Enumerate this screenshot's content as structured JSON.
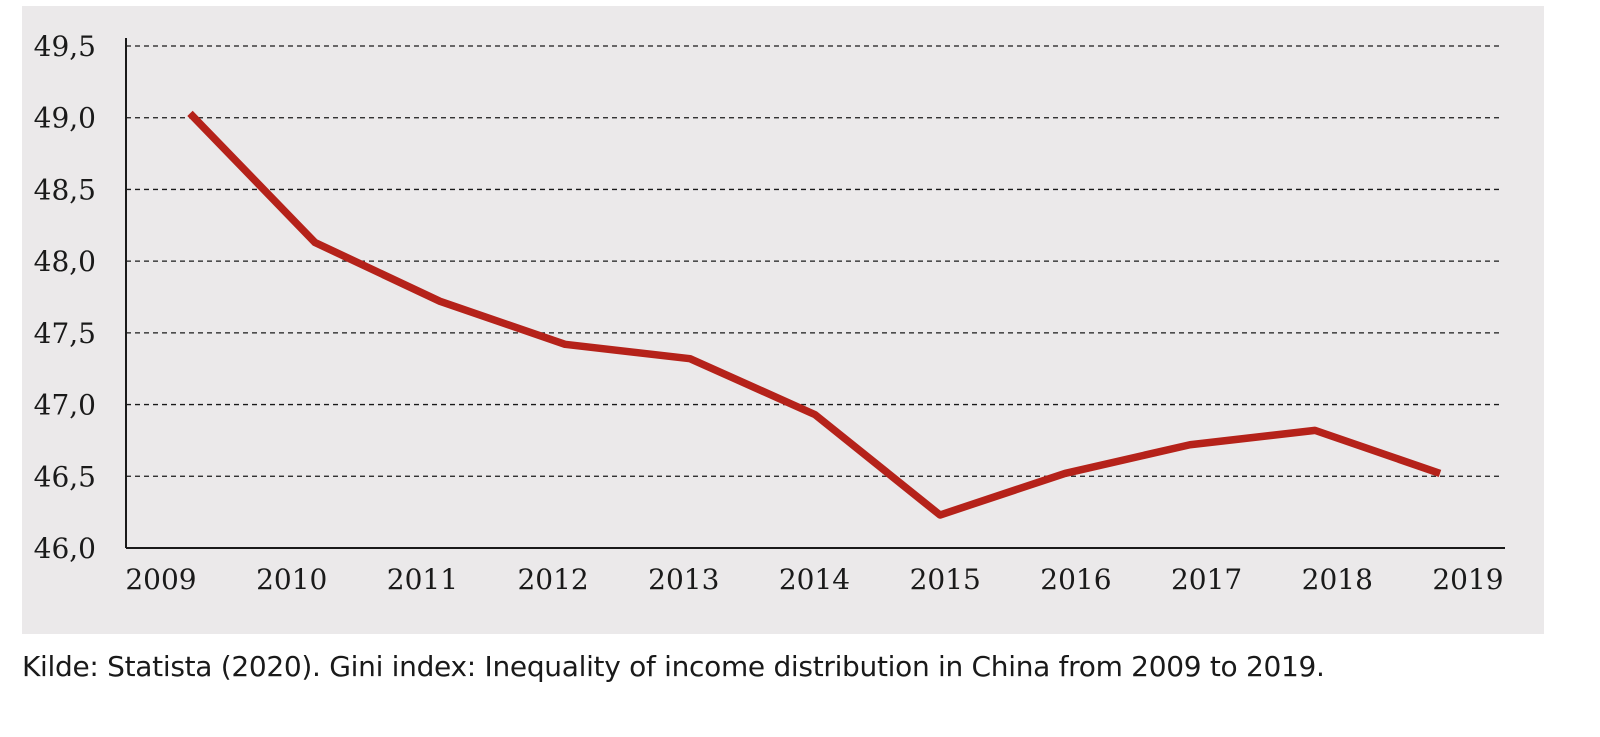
{
  "chart_data": {
    "type": "line",
    "x": [
      "2009",
      "2010",
      "2011",
      "2012",
      "2013",
      "2014",
      "2015",
      "2016",
      "2017",
      "2018",
      "2019"
    ],
    "series": [
      {
        "values": [
          49.03,
          48.13,
          47.72,
          47.42,
          47.32,
          46.93,
          46.23,
          46.52,
          46.72,
          46.82,
          46.52
        ]
      }
    ],
    "y_ticks": [
      "46,0",
      "46,5",
      "47,0",
      "47,5",
      "48,0",
      "48,5",
      "49,0",
      "49,5"
    ],
    "ylim": [
      46.0,
      49.5
    ],
    "grid": "horizontal-dashed",
    "line_color": "#b5221a",
    "background": "#ebe9ea"
  },
  "caption": "Kilde: Statista (2020). Gini index: Inequality of income distribution in China from 2009 to 2019."
}
